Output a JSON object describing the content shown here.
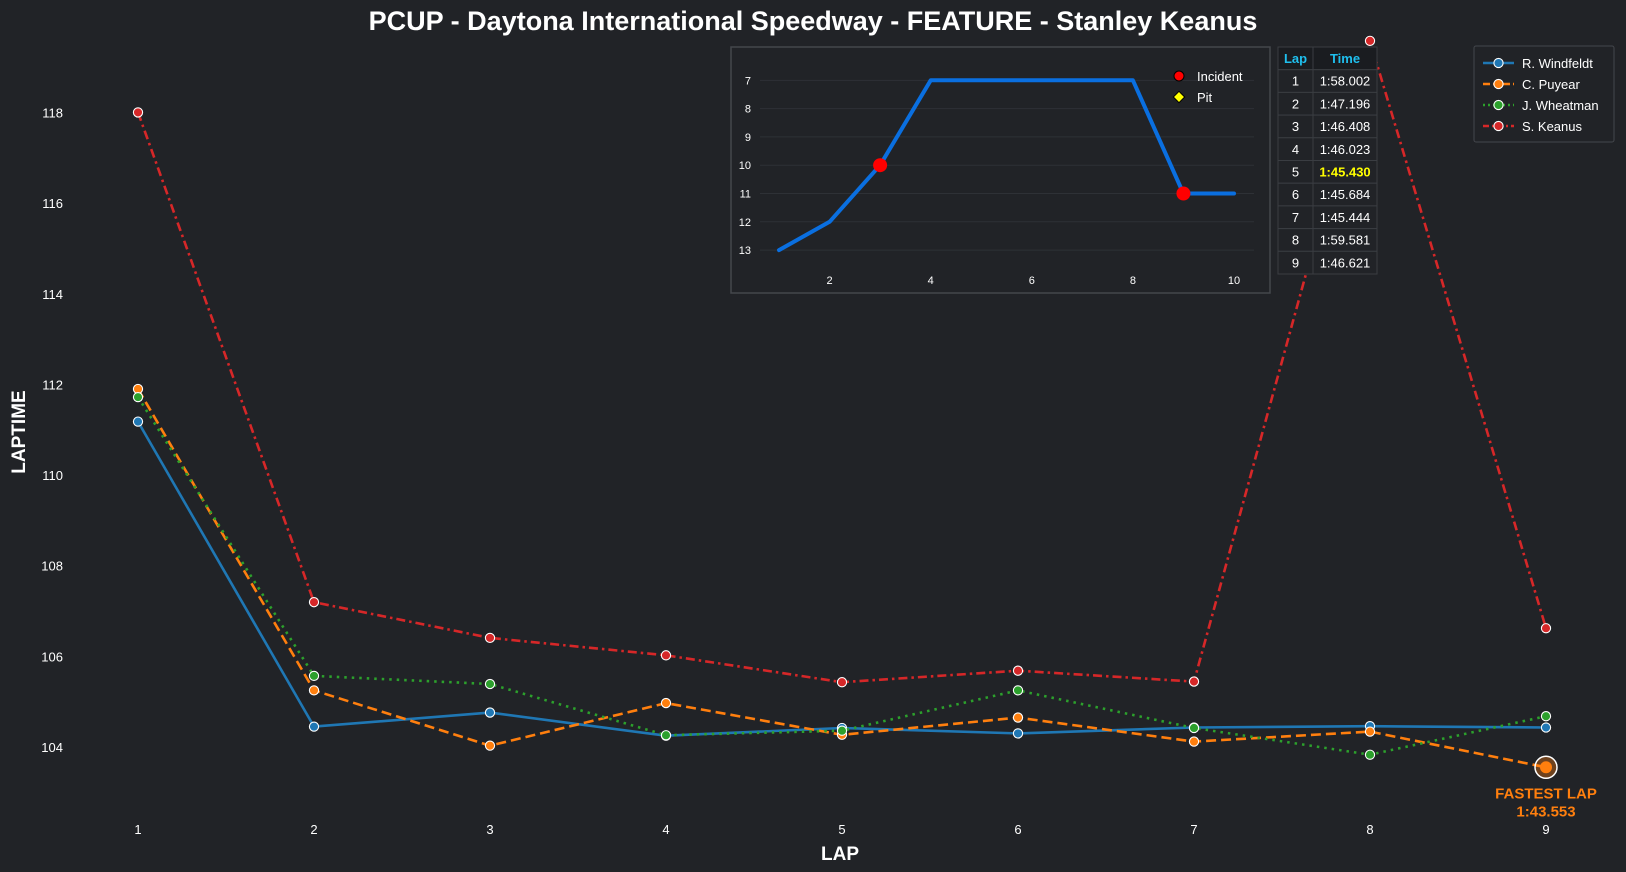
{
  "colors": {
    "background": "#212327",
    "text": "#ffffff",
    "fastest_highlight": "#ff7f0e",
    "table_header": "#1fbfee",
    "table_best": "#ffff00",
    "inset_line": "#0a6fe0",
    "incident": "#ff0000",
    "pit": "#ffff00"
  },
  "chart_data": [
    {
      "type": "line",
      "title": "PCUP - Daytona International Speedway - FEATURE - Stanley Keanus",
      "xlabel": "LAP",
      "ylabel": "LAPTIME",
      "x": [
        1,
        2,
        3,
        4,
        5,
        6,
        7,
        8,
        9
      ],
      "x_ticks": [
        "1",
        "2",
        "3",
        "4",
        "5",
        "6",
        "7",
        "8",
        "9"
      ],
      "y_ticks": [
        "104",
        "106",
        "108",
        "110",
        "112",
        "114",
        "116",
        "118"
      ],
      "ylim": [
        102.5,
        119.6
      ],
      "grid": false,
      "legend_position": "top-right",
      "series": [
        {
          "name": "R. Windfeldt",
          "color": "#1f77b4",
          "style": "solid",
          "values": [
            111.18,
            104.45,
            104.76,
            104.25,
            104.42,
            104.3,
            104.43,
            104.46,
            104.43
          ]
        },
        {
          "name": "C. Puyear",
          "color": "#ff7f0e",
          "style": "dashed",
          "values": [
            111.9,
            105.25,
            104.03,
            104.97,
            104.27,
            104.65,
            104.12,
            104.34,
            103.553
          ]
        },
        {
          "name": "J. Wheatman",
          "color": "#2ca02c",
          "style": "dotted",
          "values": [
            111.72,
            105.57,
            105.39,
            104.26,
            104.36,
            105.25,
            104.42,
            103.83,
            104.68
          ]
        },
        {
          "name": "S. Keanus",
          "color": "#d62728",
          "style": "dashdot",
          "values": [
            118.002,
            107.196,
            106.408,
            106.023,
            105.43,
            105.684,
            105.444,
            119.581,
            106.621
          ]
        }
      ],
      "annotation": {
        "x": 9,
        "y": 103.553,
        "line1": "FASTEST LAP",
        "line2": "1:43.553"
      }
    },
    {
      "type": "line",
      "title": "",
      "x": [
        1,
        2,
        3,
        4,
        5,
        6,
        7,
        8,
        9,
        10
      ],
      "y": [
        13,
        12,
        10,
        7,
        7,
        7,
        7,
        7,
        11,
        11
      ],
      "x_ticks": [
        "2",
        "4",
        "6",
        "8",
        "10"
      ],
      "y_ticks": [
        "7",
        "8",
        "9",
        "10",
        "11",
        "12",
        "13"
      ],
      "ylim": [
        13.35,
        6.6
      ],
      "y_inverted": true,
      "incidents": [
        {
          "x": 3,
          "y": 10
        },
        {
          "x": 9,
          "y": 11
        }
      ],
      "legend": [
        "Incident",
        "Pit"
      ]
    }
  ],
  "lap_table": {
    "headers": [
      "Lap",
      "Time"
    ],
    "best_lap": "5",
    "rows": [
      [
        "1",
        "1:58.002"
      ],
      [
        "2",
        "1:47.196"
      ],
      [
        "3",
        "1:46.408"
      ],
      [
        "4",
        "1:46.023"
      ],
      [
        "5",
        "1:45.430"
      ],
      [
        "6",
        "1:45.684"
      ],
      [
        "7",
        "1:45.444"
      ],
      [
        "8",
        "1:59.581"
      ],
      [
        "9",
        "1:46.621"
      ]
    ]
  }
}
